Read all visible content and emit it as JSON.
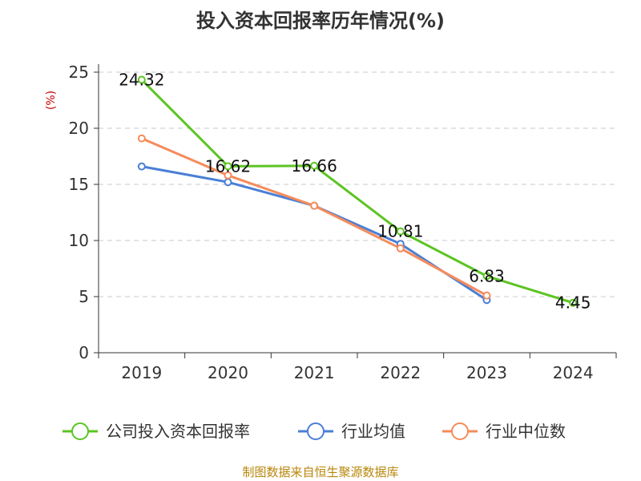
{
  "title": "投入资本回报率历年情况(%)",
  "source": "制图数据来自恒生聚源数据库",
  "chart_data": {
    "type": "line",
    "title": "投入资本回报率历年情况(%)",
    "ylabel": "(%)",
    "xlabel": "",
    "categories": [
      "2019",
      "2020",
      "2021",
      "2022",
      "2023",
      "2024"
    ],
    "ylim": [
      0,
      25
    ],
    "yticks": [
      0,
      5,
      10,
      15,
      20,
      25
    ],
    "grid": true,
    "legend_position": "bottom",
    "series": [
      {
        "name": "公司投入资本回报率",
        "color": "#5cc423",
        "values": [
          24.32,
          16.62,
          16.66,
          10.81,
          6.83,
          4.45
        ],
        "labels": [
          "24.32",
          "16.62",
          "16.66",
          "10.81",
          "6.83",
          "4.45"
        ]
      },
      {
        "name": "行业均值",
        "color": "#4a7fd6",
        "values": [
          16.6,
          15.2,
          13.1,
          9.7,
          4.7,
          null
        ]
      },
      {
        "name": "行业中位数",
        "color": "#f68b5a",
        "values": [
          19.1,
          15.8,
          13.1,
          9.3,
          5.1,
          null
        ]
      }
    ]
  }
}
